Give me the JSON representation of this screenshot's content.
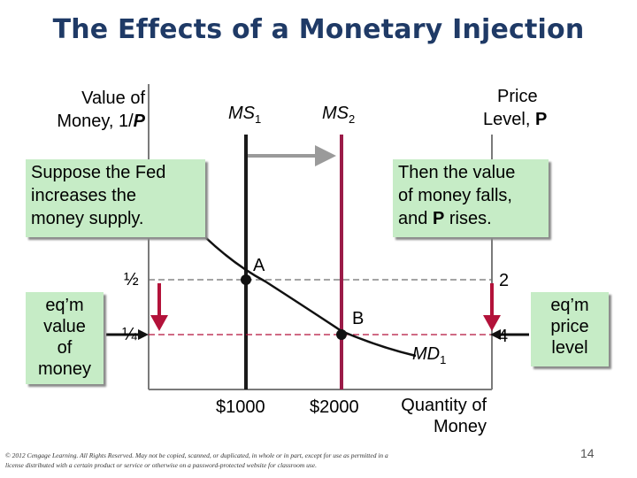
{
  "title": "The Effects of a Monetary Injection",
  "axes": {
    "left_label_line1": "Value of",
    "left_label_line2": "Money, 1/",
    "left_label_var": "P",
    "right_label_line1": "Price",
    "right_label_line2": "Level, ",
    "right_label_var": "P",
    "x_label_line1": "Quantity of",
    "x_label_line2": "Money"
  },
  "curves": {
    "ms1_label": "MS",
    "ms1_sub": "1",
    "ms2_label": "MS",
    "ms2_sub": "2",
    "md_label": "MD",
    "md_sub": "1"
  },
  "points": {
    "a_label": "A",
    "b_label": "B"
  },
  "ticks": {
    "left_half": "½",
    "left_quarter": "¼",
    "right_two": "2",
    "right_four": "4",
    "x_1000": "$1000",
    "x_2000": "$2000"
  },
  "callouts": {
    "fed_line1": "Suppose the Fed",
    "fed_line2": "increases the",
    "fed_line3": "money supply.",
    "then_line1": "Then the value",
    "then_line2": "of money falls,",
    "then_line3_pre": "and ",
    "then_line3_var": "P",
    "then_line3_post": " rises."
  },
  "eq_value_box": {
    "line1": "eq’m",
    "line2": "value",
    "line3": "of",
    "line4": "money"
  },
  "eq_price_box": {
    "line1": "eq’m",
    "line2": "price",
    "line3": "level"
  },
  "footer": "© 2012 Cengage Learning. All Rights Reserved. May not be copied, scanned, or duplicated, in whole or in part, except for use as permitted in a license distributed with a certain product or service or otherwise on a password-protected website for classroom use.",
  "page_number": "14",
  "colors": {
    "title": "#1f3a66",
    "ms2_line": "#9b1b48",
    "arrow_down": "#b3123a",
    "callout_bg": "#c6ecc6",
    "axis": "#7a7a7a"
  }
}
